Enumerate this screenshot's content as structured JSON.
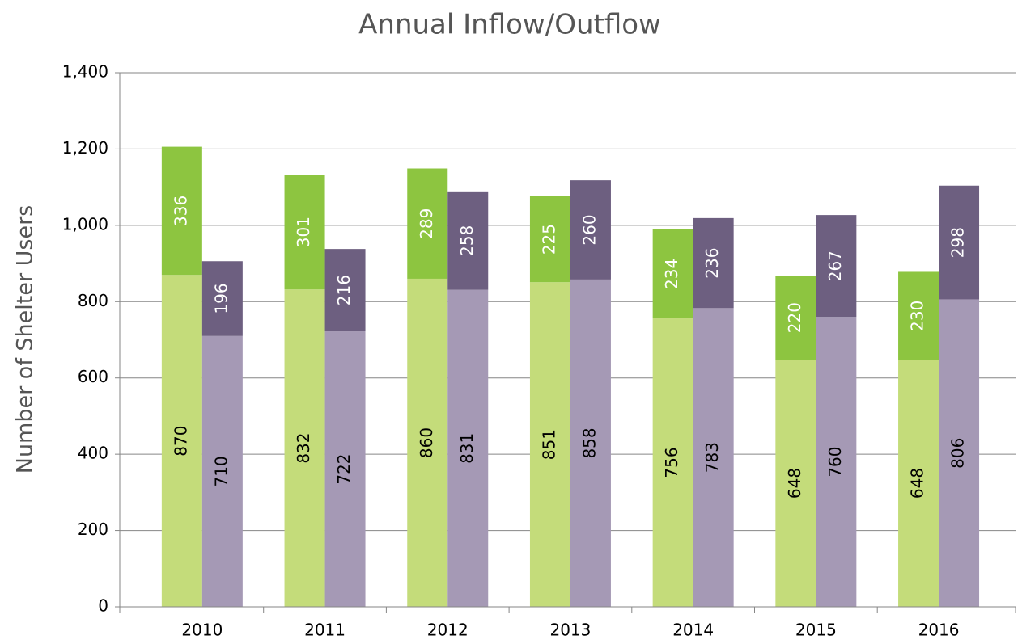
{
  "chart_data": {
    "type": "grouped-stacked-bar",
    "title": "Annual Inflow/Outflow",
    "y_label": "Number of Shelter Users",
    "categories": [
      "2010",
      "2011",
      "2012",
      "2013",
      "2014",
      "2015",
      "2016"
    ],
    "stacks": [
      {
        "segments": [
          {
            "color": "#c4dc7a",
            "label_color": "#000000",
            "values": [
              870,
              832,
              860,
              851,
              756,
              648,
              648
            ]
          },
          {
            "color": "#8dc540",
            "label_color": "#ffffff",
            "values": [
              336,
              301,
              289,
              225,
              234,
              220,
              230
            ]
          }
        ]
      },
      {
        "segments": [
          {
            "color": "#a599b5",
            "label_color": "#000000",
            "values": [
              710,
              722,
              831,
              858,
              783,
              760,
              806
            ]
          },
          {
            "color": "#6d5f80",
            "label_color": "#ffffff",
            "values": [
              196,
              216,
              258,
              260,
              236,
              267,
              298
            ]
          }
        ]
      }
    ],
    "ylim": [
      0,
      1400
    ],
    "yticks": [
      0,
      200,
      400,
      600,
      800,
      {
        "value": 1000,
        "label": "1,000"
      },
      {
        "value": 1200,
        "label": "1,200"
      },
      {
        "value": 1400,
        "label": "1,400"
      }
    ],
    "grid": true
  }
}
